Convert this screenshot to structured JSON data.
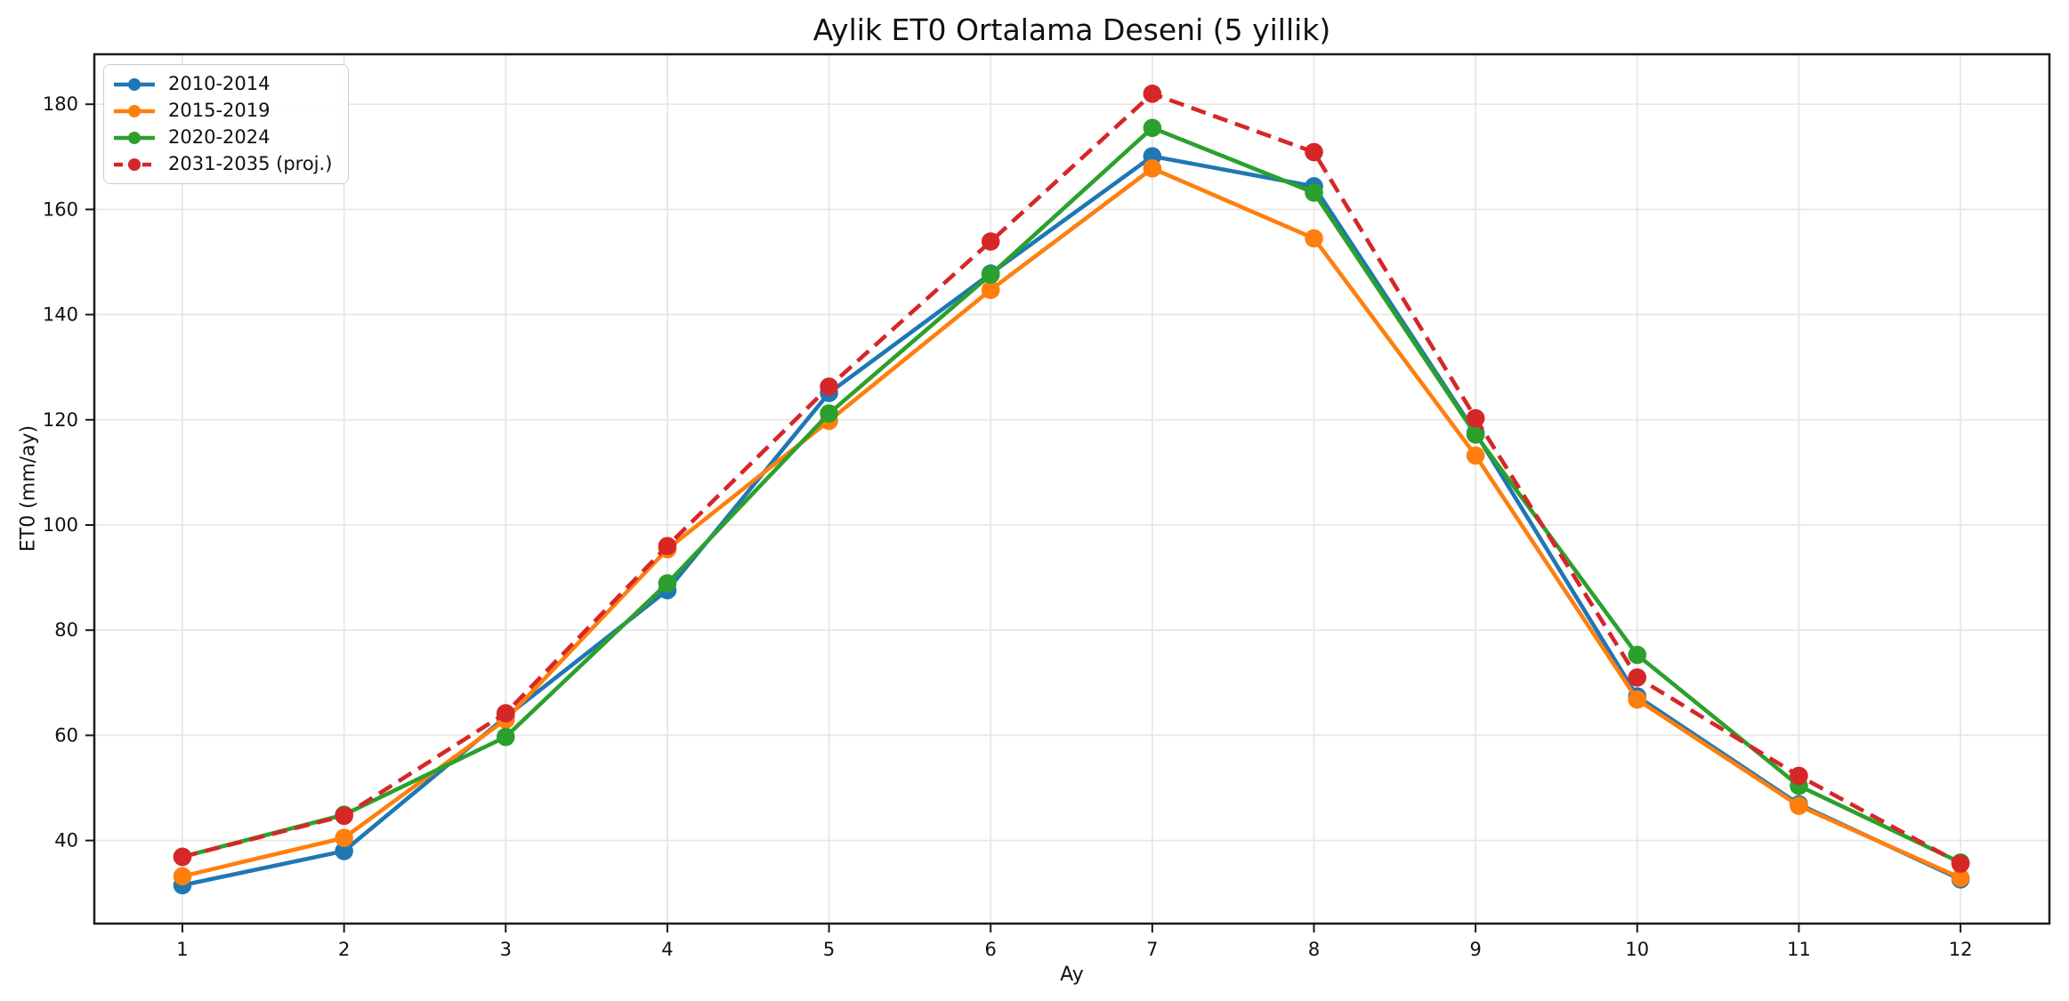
{
  "chart_data": {
    "type": "line",
    "title": "Aylik ET0 Ortalama Deseni (5 yillik)",
    "xlabel": "Ay",
    "ylabel": "ET0 (mm/ay)",
    "grid": true,
    "legend_position": "upper left",
    "xticks": [
      1,
      2,
      3,
      4,
      5,
      6,
      7,
      8,
      9,
      10,
      11,
      12
    ],
    "yticks": [
      40,
      60,
      80,
      100,
      120,
      140,
      160,
      180
    ],
    "xlim": [
      0.455,
      12.55
    ],
    "ylim": [
      24.2,
      189.5
    ],
    "x": [
      1,
      2,
      3,
      4,
      5,
      6,
      7,
      8,
      9,
      10,
      11,
      12
    ],
    "series": [
      {
        "name": "2010-2014",
        "color": "#1f77b4",
        "style": "solid",
        "marker": "circle",
        "values": [
          31.5,
          38.0,
          63.5,
          87.6,
          125.1,
          147.8,
          170.1,
          164.4,
          117.5,
          67.4,
          46.9,
          32.6
        ]
      },
      {
        "name": "2015-2019",
        "color": "#ff7f0e",
        "style": "solid",
        "marker": "circle",
        "values": [
          33.2,
          40.5,
          63.0,
          95.4,
          119.8,
          144.7,
          167.8,
          154.5,
          113.2,
          66.8,
          46.6,
          32.9
        ]
      },
      {
        "name": "2020-2024",
        "color": "#2ca02c",
        "style": "solid",
        "marker": "circle",
        "values": [
          36.9,
          44.9,
          59.7,
          88.9,
          121.2,
          147.6,
          175.5,
          163.2,
          117.2,
          75.3,
          50.4,
          35.8
        ]
      },
      {
        "name": "2031-2035 (proj.)",
        "color": "#d62728",
        "style": "dashed",
        "marker": "circle",
        "values": [
          36.9,
          44.7,
          64.2,
          96.0,
          126.3,
          153.9,
          182.0,
          170.9,
          120.3,
          71.0,
          52.3,
          35.6
        ]
      }
    ]
  }
}
